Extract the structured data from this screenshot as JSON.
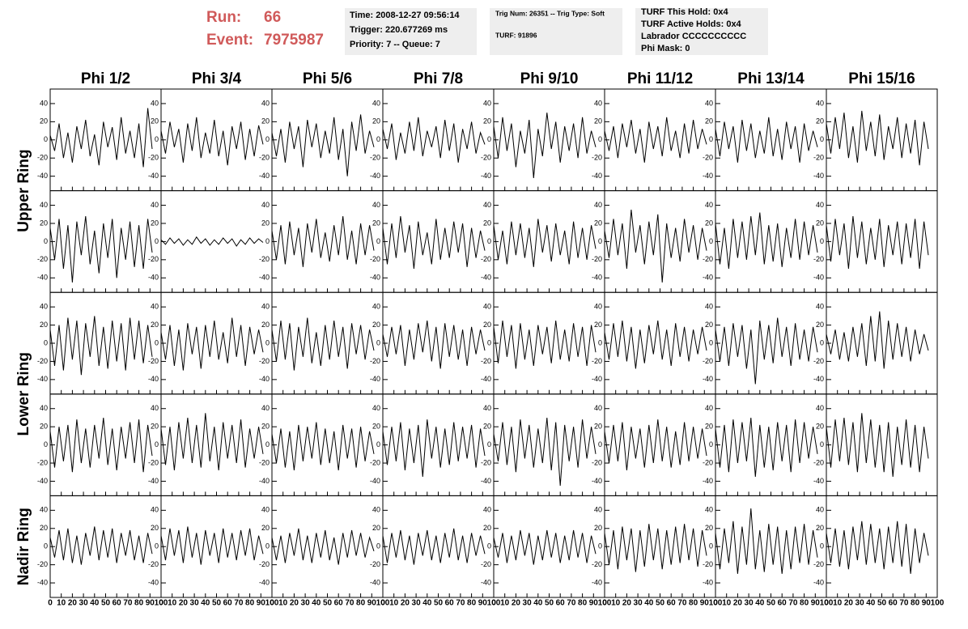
{
  "header": {
    "run_label": "Run:",
    "run": "66",
    "event_label": "Event:",
    "event": "7975987",
    "box1": [
      "Time: 2008-12-27 09:56:14",
      "Trigger: 220.677269 ms",
      "Priority: 7 -- Queue: 7"
    ],
    "box2": [
      "Trig Num: 26351 -- Trig Type: Soft",
      "TURF: 91896"
    ],
    "box3": [
      "TURF This Hold: 0x4",
      "TURF Active Holds: 0x4",
      "Labrador CCCCCCCCCC",
      "Phi Mask: 0"
    ]
  },
  "chart_data": {
    "type": "line",
    "columns": [
      "Phi 1/2",
      "Phi 3/4",
      "Phi 5/6",
      "Phi 7/8",
      "Phi 9/10",
      "Phi 11/12",
      "Phi 13/14",
      "Phi 15/16"
    ],
    "rows": [
      "Upper Ring",
      "Upper Ring",
      "Lower Ring",
      "Lower Ring",
      "Nadir Ring"
    ],
    "row_labels": [
      "Upper Ring",
      "Lower Ring",
      "Nadir Ring"
    ],
    "xlim": [
      0,
      100
    ],
    "ylim": [
      -56,
      56
    ],
    "xticks": [
      0,
      10,
      20,
      30,
      40,
      50,
      60,
      70,
      80,
      90,
      100
    ],
    "yticks": [
      -40,
      -20,
      0,
      20,
      40
    ],
    "color": "#000000",
    "x": [
      0,
      4,
      8,
      12,
      16,
      20,
      24,
      28,
      32,
      36,
      40,
      44,
      48,
      52,
      56,
      60,
      64,
      68,
      72,
      76,
      80,
      84,
      88,
      92
    ],
    "panels": [
      [
        {
          "values": [
            5,
            -12,
            18,
            -20,
            8,
            -25,
            15,
            -10,
            22,
            -18,
            6,
            -28,
            20,
            -8,
            14,
            -22,
            25,
            -15,
            10,
            -20,
            18,
            -30,
            35,
            -10
          ]
        },
        {
          "values": [
            10,
            -15,
            20,
            -8,
            12,
            -25,
            18,
            -12,
            25,
            -20,
            8,
            -15,
            22,
            -18,
            10,
            -28,
            15,
            -10,
            20,
            -22,
            12,
            -18,
            16,
            -5
          ]
        },
        {
          "values": [
            8,
            -18,
            12,
            -25,
            20,
            -10,
            15,
            -30,
            22,
            -8,
            18,
            -20,
            10,
            -15,
            25,
            -22,
            12,
            -40,
            20,
            -12,
            28,
            -15,
            10,
            -8
          ]
        },
        {
          "values": [
            12,
            -10,
            18,
            -22,
            8,
            -15,
            20,
            -12,
            25,
            -18,
            10,
            -8,
            15,
            -20,
            22,
            -12,
            18,
            -25,
            12,
            -10,
            20,
            -15,
            8,
            -5
          ]
        },
        {
          "values": [
            15,
            -20,
            25,
            -12,
            18,
            -30,
            10,
            -15,
            22,
            -42,
            12,
            -18,
            30,
            -10,
            20,
            -25,
            15,
            -12,
            18,
            -20,
            25,
            -15,
            10,
            -8
          ]
        },
        {
          "values": [
            10,
            -12,
            15,
            -20,
            18,
            -8,
            22,
            -15,
            12,
            -25,
            20,
            -10,
            15,
            -18,
            25,
            -12,
            10,
            -20,
            18,
            -15,
            22,
            -10,
            12,
            -5
          ]
        },
        {
          "values": [
            12,
            -18,
            20,
            -10,
            15,
            -25,
            22,
            -12,
            18,
            -20,
            10,
            -15,
            25,
            -18,
            12,
            -22,
            20,
            -10,
            15,
            -25,
            18,
            -12,
            10,
            -8
          ]
        },
        {
          "values": [
            18,
            -15,
            25,
            -10,
            30,
            -20,
            15,
            -25,
            32,
            -12,
            20,
            -18,
            28,
            -22,
            15,
            -10,
            25,
            -20,
            18,
            -15,
            22,
            -28,
            20,
            -10
          ]
        }
      ],
      [
        {
          "values": [
            15,
            -20,
            25,
            -30,
            18,
            -45,
            22,
            -15,
            28,
            -25,
            12,
            -35,
            20,
            -18,
            25,
            -40,
            15,
            -20,
            22,
            -28,
            18,
            -30,
            25,
            -12
          ]
        },
        {
          "values": [
            2,
            -3,
            4,
            -2,
            3,
            -4,
            2,
            -3,
            5,
            -2,
            3,
            -4,
            2,
            -3,
            4,
            -2,
            3,
            -5,
            2,
            -3,
            4,
            -2,
            3,
            -1
          ]
        },
        {
          "values": [
            12,
            -20,
            18,
            -25,
            22,
            -15,
            15,
            -28,
            20,
            -12,
            25,
            -18,
            10,
            -22,
            18,
            -15,
            28,
            -20,
            12,
            -25,
            20,
            -15,
            18,
            -10
          ]
        },
        {
          "values": [
            15,
            -25,
            20,
            -18,
            28,
            -12,
            18,
            -30,
            22,
            -15,
            10,
            -25,
            25,
            -20,
            15,
            -18,
            22,
            -12,
            20,
            -28,
            15,
            -18,
            12,
            -10
          ]
        },
        {
          "values": [
            18,
            -20,
            12,
            -25,
            22,
            -15,
            20,
            -18,
            15,
            -28,
            25,
            -12,
            18,
            -22,
            20,
            -15,
            12,
            -25,
            22,
            -18,
            15,
            -20,
            18,
            -8
          ]
        },
        {
          "values": [
            12,
            -18,
            25,
            -15,
            20,
            -30,
            35,
            -12,
            18,
            -25,
            22,
            -15,
            30,
            -45,
            20,
            -18,
            15,
            -22,
            25,
            -12,
            18,
            -20,
            15,
            -10
          ]
        },
        {
          "values": [
            20,
            -25,
            15,
            -30,
            25,
            -18,
            22,
            -20,
            28,
            -15,
            32,
            -25,
            18,
            -22,
            20,
            -28,
            15,
            -18,
            25,
            -20,
            22,
            -15,
            18,
            -12
          ]
        },
        {
          "values": [
            18,
            -22,
            25,
            -15,
            20,
            -30,
            28,
            -18,
            22,
            -25,
            15,
            -20,
            25,
            -28,
            18,
            -15,
            22,
            -25,
            20,
            -18,
            25,
            -30,
            22,
            -15
          ]
        }
      ],
      [
        {
          "values": [
            15,
            -25,
            20,
            -30,
            28,
            -18,
            25,
            -35,
            22,
            -15,
            30,
            -25,
            18,
            -28,
            25,
            -20,
            22,
            -30,
            28,
            -18,
            25,
            -22,
            20,
            -15
          ]
        },
        {
          "values": [
            12,
            -18,
            20,
            -25,
            15,
            -30,
            22,
            -12,
            18,
            -28,
            20,
            -15,
            25,
            -18,
            12,
            -22,
            28,
            -15,
            20,
            -25,
            18,
            -12,
            15,
            -10
          ]
        },
        {
          "values": [
            15,
            -20,
            25,
            -18,
            22,
            -30,
            18,
            -15,
            28,
            -22,
            12,
            -25,
            20,
            -18,
            25,
            -15,
            18,
            -28,
            22,
            -12,
            20,
            -18,
            15,
            -8
          ]
        },
        {
          "values": [
            10,
            -15,
            18,
            -12,
            20,
            -25,
            15,
            -18,
            22,
            -10,
            25,
            -20,
            18,
            -28,
            22,
            -15,
            20,
            -18,
            15,
            -25,
            18,
            -12,
            15,
            -8
          ]
        },
        {
          "values": [
            18,
            -22,
            25,
            -15,
            20,
            -28,
            22,
            -18,
            15,
            -25,
            20,
            -12,
            18,
            -22,
            25,
            -18,
            15,
            -20,
            22,
            -15,
            18,
            -25,
            20,
            -10
          ]
        },
        {
          "values": [
            12,
            -18,
            22,
            -15,
            25,
            -20,
            18,
            -28,
            15,
            -22,
            20,
            -12,
            25,
            -18,
            15,
            -25,
            22,
            -15,
            18,
            -20,
            15,
            -12,
            18,
            -8
          ]
        },
        {
          "values": [
            15,
            -20,
            18,
            -25,
            22,
            -15,
            20,
            -28,
            15,
            -45,
            25,
            -18,
            20,
            -22,
            28,
            -15,
            18,
            -25,
            22,
            -18,
            15,
            -20,
            18,
            -10
          ]
        },
        {
          "values": [
            10,
            -12,
            15,
            -18,
            12,
            -20,
            18,
            -15,
            22,
            -25,
            30,
            -20,
            35,
            -28,
            25,
            -18,
            22,
            -15,
            18,
            -20,
            15,
            -12,
            10,
            -8
          ]
        }
      ],
      [
        {
          "values": [
            15,
            -25,
            20,
            -18,
            22,
            -30,
            28,
            -20,
            18,
            -25,
            22,
            -15,
            30,
            -22,
            18,
            -28,
            20,
            -15,
            25,
            -20,
            28,
            -30,
            22,
            -12
          ]
        },
        {
          "values": [
            18,
            -22,
            20,
            -28,
            25,
            -15,
            30,
            -20,
            22,
            -25,
            35,
            -18,
            20,
            -28,
            25,
            -15,
            22,
            -20,
            28,
            -25,
            18,
            -15,
            20,
            -10
          ]
        },
        {
          "values": [
            12,
            -20,
            18,
            -25,
            15,
            -28,
            22,
            -18,
            20,
            -15,
            25,
            -22,
            18,
            -20,
            15,
            -28,
            22,
            -15,
            18,
            -25,
            20,
            -18,
            15,
            -10
          ]
        },
        {
          "values": [
            15,
            -22,
            20,
            -18,
            25,
            -28,
            18,
            -20,
            22,
            -35,
            28,
            -15,
            20,
            -25,
            18,
            -22,
            25,
            -18,
            20,
            -15,
            22,
            -25,
            18,
            -12
          ]
        },
        {
          "values": [
            12,
            -18,
            25,
            -22,
            20,
            -30,
            28,
            -15,
            22,
            -25,
            18,
            -20,
            30,
            -28,
            25,
            -45,
            22,
            -18,
            20,
            -25,
            28,
            -15,
            20,
            -10
          ]
        },
        {
          "values": [
            15,
            -20,
            22,
            -18,
            25,
            -28,
            20,
            -15,
            18,
            -25,
            22,
            -20,
            28,
            -18,
            20,
            -25,
            15,
            -22,
            25,
            -18,
            20,
            -15,
            18,
            -12
          ]
        },
        {
          "values": [
            18,
            -25,
            22,
            -30,
            28,
            -20,
            25,
            -18,
            30,
            -35,
            22,
            -25,
            20,
            -28,
            25,
            -18,
            22,
            -30,
            28,
            -20,
            25,
            -15,
            20,
            -10
          ]
        },
        {
          "values": [
            20,
            -25,
            28,
            -18,
            30,
            -22,
            25,
            -30,
            35,
            -20,
            28,
            -25,
            22,
            -30,
            25,
            -35,
            20,
            -22,
            28,
            -25,
            22,
            -30,
            20,
            -15
          ]
        }
      ],
      [
        {
          "values": [
            10,
            -12,
            18,
            -15,
            20,
            -18,
            12,
            -20,
            15,
            -10,
            22,
            -15,
            18,
            -12,
            20,
            -18,
            15,
            -10,
            18,
            -15,
            12,
            -18,
            15,
            -8
          ]
        },
        {
          "values": [
            12,
            -15,
            20,
            -10,
            18,
            -18,
            22,
            -12,
            15,
            -20,
            18,
            -10,
            15,
            -18,
            20,
            -12,
            15,
            -15,
            18,
            -10,
            20,
            -15,
            12,
            -8
          ]
        },
        {
          "values": [
            10,
            -15,
            12,
            -18,
            15,
            -10,
            20,
            -15,
            12,
            -18,
            15,
            -12,
            18,
            -15,
            10,
            -20,
            15,
            -12,
            18,
            -10,
            15,
            -12,
            10,
            -5
          ]
        },
        {
          "values": [
            12,
            -18,
            15,
            -12,
            18,
            -15,
            12,
            -20,
            15,
            -10,
            18,
            -15,
            12,
            -18,
            15,
            -12,
            20,
            -15,
            12,
            -18,
            15,
            -10,
            12,
            -8
          ]
        },
        {
          "values": [
            10,
            -12,
            15,
            -18,
            12,
            -15,
            18,
            -10,
            15,
            -20,
            12,
            -15,
            18,
            -12,
            15,
            -18,
            12,
            -15,
            18,
            -12,
            15,
            -18,
            12,
            -8
          ]
        },
        {
          "values": [
            15,
            -20,
            18,
            -25,
            22,
            -15,
            20,
            -28,
            18,
            -22,
            25,
            -15,
            20,
            -25,
            18,
            -20,
            22,
            -18,
            25,
            -15,
            20,
            -22,
            18,
            -10
          ]
        },
        {
          "values": [
            15,
            -25,
            20,
            -18,
            28,
            -30,
            22,
            -20,
            42,
            -25,
            18,
            -28,
            25,
            -20,
            22,
            -30,
            18,
            -25,
            22,
            -18,
            25,
            -20,
            18,
            -12
          ]
        },
        {
          "values": [
            15,
            -18,
            20,
            -22,
            18,
            -25,
            22,
            -15,
            28,
            -20,
            25,
            -18,
            20,
            -25,
            22,
            -18,
            28,
            -22,
            25,
            -30,
            20,
            -18,
            15,
            -10
          ]
        }
      ]
    ]
  }
}
